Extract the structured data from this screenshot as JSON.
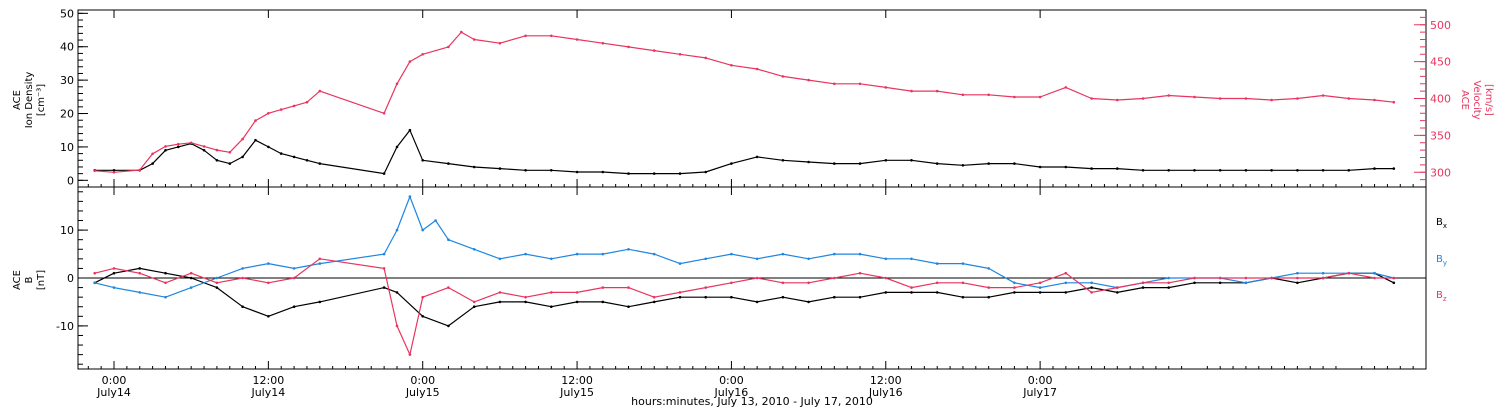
{
  "chart_data": [
    {
      "type": "scatter",
      "panel": "top",
      "left_axis": {
        "label_lines": [
          "ACE",
          "Ion Density",
          "[cm⁻³]"
        ],
        "ticks": [
          0,
          10,
          20,
          30,
          40,
          50
        ],
        "range": [
          -2,
          51
        ]
      },
      "right_axis": {
        "label_lines": [
          "ACE",
          "Velocity",
          "[km/s]"
        ],
        "ticks": [
          300,
          350,
          400,
          450,
          500
        ],
        "range": [
          280,
          520
        ],
        "color": "#e8355f"
      },
      "series": [
        {
          "axis": "left",
          "color": "#000000",
          "x": [
            -1.5,
            0,
            2,
            3,
            4,
            5,
            6,
            7,
            8,
            9,
            10,
            11,
            12,
            13,
            14,
            15,
            16,
            21,
            22,
            23,
            24,
            26,
            28,
            30,
            32,
            34,
            36,
            38,
            40,
            42,
            44,
            46,
            48,
            50,
            52,
            54,
            56,
            58,
            60,
            62,
            64,
            66,
            68,
            70,
            72,
            74,
            76,
            78,
            80,
            82,
            84,
            86,
            88,
            90,
            92,
            94,
            96,
            98,
            99.5
          ],
          "y": [
            3,
            3,
            3,
            5,
            9,
            10,
            11,
            9,
            6,
            5,
            7,
            12,
            10,
            8,
            7,
            6,
            5,
            2,
            10,
            15,
            6,
            5,
            4,
            3.5,
            3,
            3,
            2.5,
            2.5,
            2,
            2,
            2,
            2.5,
            5,
            7,
            6,
            5.5,
            5,
            5,
            6,
            6,
            5,
            4.5,
            5,
            5,
            4,
            4,
            3.5,
            3.5,
            3,
            3,
            3,
            3,
            3,
            3,
            3,
            3,
            3,
            3.5,
            3.5
          ]
        },
        {
          "axis": "right",
          "color": "#e8355f",
          "x": [
            -1.5,
            0,
            2,
            3,
            4,
            5,
            6,
            7,
            8,
            9,
            10,
            11,
            12,
            13,
            14,
            15,
            16,
            21,
            22,
            23,
            24,
            26,
            27,
            28,
            30,
            32,
            34,
            36,
            38,
            40,
            42,
            44,
            46,
            48,
            50,
            52,
            54,
            56,
            58,
            60,
            62,
            64,
            66,
            68,
            70,
            72,
            74,
            76,
            78,
            80,
            82,
            84,
            86,
            88,
            90,
            92,
            94,
            96,
            98,
            99.5
          ],
          "y": [
            302,
            300,
            303,
            325,
            335,
            338,
            340,
            335,
            330,
            327,
            345,
            370,
            380,
            385,
            390,
            395,
            410,
            380,
            420,
            450,
            460,
            470,
            490,
            480,
            475,
            485,
            485,
            480,
            475,
            470,
            465,
            460,
            455,
            445,
            440,
            430,
            425,
            420,
            420,
            415,
            410,
            410,
            405,
            405,
            402,
            402,
            415,
            400,
            398,
            400,
            404,
            402,
            400,
            400,
            398,
            400,
            404,
            400,
            398,
            395
          ]
        }
      ]
    },
    {
      "type": "scatter",
      "panel": "bottom",
      "left_axis": {
        "label_lines": [
          "ACE",
          "B",
          "[nT]"
        ],
        "ticks": [
          -10,
          0,
          10
        ],
        "range": [
          -19,
          19
        ]
      },
      "zero_line": true,
      "series": [
        {
          "name": "Bx",
          "color": "#000000",
          "x": [
            -1.5,
            0,
            2,
            4,
            6,
            8,
            10,
            12,
            14,
            16,
            21,
            22,
            24,
            26,
            28,
            30,
            32,
            34,
            36,
            38,
            40,
            42,
            44,
            46,
            48,
            50,
            52,
            54,
            56,
            58,
            60,
            62,
            64,
            66,
            68,
            70,
            72,
            74,
            76,
            78,
            80,
            82,
            84,
            86,
            88,
            90,
            92,
            94,
            96,
            98,
            99.5
          ],
          "y": [
            -1,
            1,
            2,
            1,
            0,
            -2,
            -6,
            -8,
            -6,
            -5,
            -2,
            -3,
            -8,
            -10,
            -6,
            -5,
            -5,
            -6,
            -5,
            -5,
            -6,
            -5,
            -4,
            -4,
            -4,
            -5,
            -4,
            -5,
            -4,
            -4,
            -3,
            -3,
            -3,
            -4,
            -4,
            -3,
            -3,
            -3,
            -2,
            -3,
            -2,
            -2,
            -1,
            -1,
            -1,
            0,
            -1,
            0,
            1,
            1,
            -1
          ]
        },
        {
          "name": "By",
          "color": "#1f86e0",
          "x": [
            -1.5,
            0,
            2,
            4,
            6,
            8,
            10,
            12,
            14,
            16,
            21,
            22,
            23,
            24,
            25,
            26,
            28,
            30,
            32,
            34,
            36,
            38,
            40,
            42,
            44,
            46,
            48,
            50,
            52,
            54,
            56,
            58,
            60,
            62,
            64,
            66,
            68,
            70,
            72,
            74,
            76,
            78,
            80,
            82,
            84,
            86,
            88,
            90,
            92,
            94,
            96,
            98,
            99.5
          ],
          "y": [
            -1,
            -2,
            -3,
            -4,
            -2,
            0,
            2,
            3,
            2,
            3,
            5,
            10,
            17,
            10,
            12,
            8,
            6,
            4,
            5,
            4,
            5,
            5,
            6,
            5,
            3,
            4,
            5,
            4,
            5,
            4,
            5,
            5,
            4,
            4,
            3,
            3,
            2,
            -1,
            -2,
            -1,
            -1,
            -2,
            -1,
            0,
            0,
            0,
            -1,
            0,
            1,
            1,
            1,
            1,
            0
          ]
        },
        {
          "name": "Bz",
          "color": "#e8355f",
          "x": [
            -1.5,
            0,
            2,
            4,
            6,
            8,
            10,
            12,
            14,
            16,
            21,
            22,
            23,
            24,
            26,
            28,
            30,
            32,
            34,
            36,
            38,
            40,
            42,
            44,
            46,
            48,
            50,
            52,
            54,
            56,
            58,
            60,
            62,
            64,
            66,
            68,
            70,
            72,
            74,
            76,
            78,
            80,
            82,
            84,
            86,
            88,
            90,
            92,
            94,
            96,
            98,
            99.5
          ],
          "y": [
            1,
            2,
            1,
            -1,
            1,
            -1,
            0,
            -1,
            0,
            4,
            2,
            -10,
            -16,
            -4,
            -2,
            -5,
            -3,
            -4,
            -3,
            -3,
            -2,
            -2,
            -4,
            -3,
            -2,
            -1,
            0,
            -1,
            -1,
            0,
            1,
            0,
            -2,
            -1,
            -1,
            -2,
            -2,
            -1,
            1,
            -3,
            -2,
            -1,
            -1,
            0,
            0,
            0,
            0,
            0,
            0,
            1,
            0,
            0
          ]
        }
      ],
      "legend": [
        {
          "name": "Bx",
          "base": "B",
          "sub": "x",
          "color": "#000000"
        },
        {
          "name": "By",
          "base": "B",
          "sub": "y",
          "color": "#1f86e0"
        },
        {
          "name": "Bz",
          "base": "B",
          "sub": "z",
          "color": "#e8355f"
        }
      ]
    }
  ],
  "x_axis": {
    "range_hours": [
      -2.8,
      102
    ],
    "ticks": [
      {
        "hour": 0,
        "time": "0:00",
        "day": "July14"
      },
      {
        "hour": 12,
        "time": "12:00",
        "day": "July14"
      },
      {
        "hour": 24,
        "time": "0:00",
        "day": "July15"
      },
      {
        "hour": 36,
        "time": "12:00",
        "day": "July15"
      },
      {
        "hour": 48,
        "time": "0:00",
        "day": "July16"
      },
      {
        "hour": 60,
        "time": "12:00",
        "day": "July16"
      },
      {
        "hour": 72,
        "time": "0:00",
        "day": "July17"
      }
    ],
    "xlabel": "hours:minutes, July 13, 2010 - July 17, 2010"
  }
}
